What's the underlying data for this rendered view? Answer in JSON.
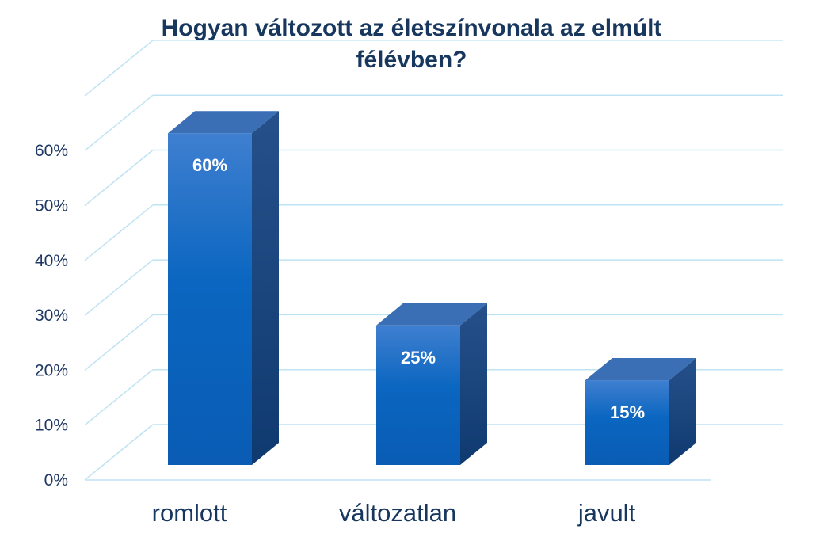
{
  "chart_data": {
    "type": "bar",
    "title_lines": [
      "Hogyan változott az életszínvonala az elmúlt",
      "félévben?"
    ],
    "categories": [
      "romlott",
      "változatlan",
      "javult"
    ],
    "values": [
      60,
      25,
      15
    ],
    "data_labels": [
      "60%",
      "25%",
      "15%"
    ],
    "y_ticks": [
      0,
      10,
      20,
      30,
      40,
      50,
      60
    ],
    "y_tick_labels": [
      "0%",
      "10%",
      "20%",
      "30%",
      "40%",
      "50%",
      "60%"
    ],
    "ylim": [
      0,
      70
    ],
    "grid": true,
    "legend": "none",
    "style": "3d-column"
  },
  "colors": {
    "title": "#17375e",
    "bar_front_top": "#3f7fd0",
    "bar_front_bottom": "#0a5cb4",
    "bar_side": "#123f7a",
    "bar_top": "#3a6fb5",
    "gridline": "#bfe3f3",
    "label": "#ffffff"
  }
}
